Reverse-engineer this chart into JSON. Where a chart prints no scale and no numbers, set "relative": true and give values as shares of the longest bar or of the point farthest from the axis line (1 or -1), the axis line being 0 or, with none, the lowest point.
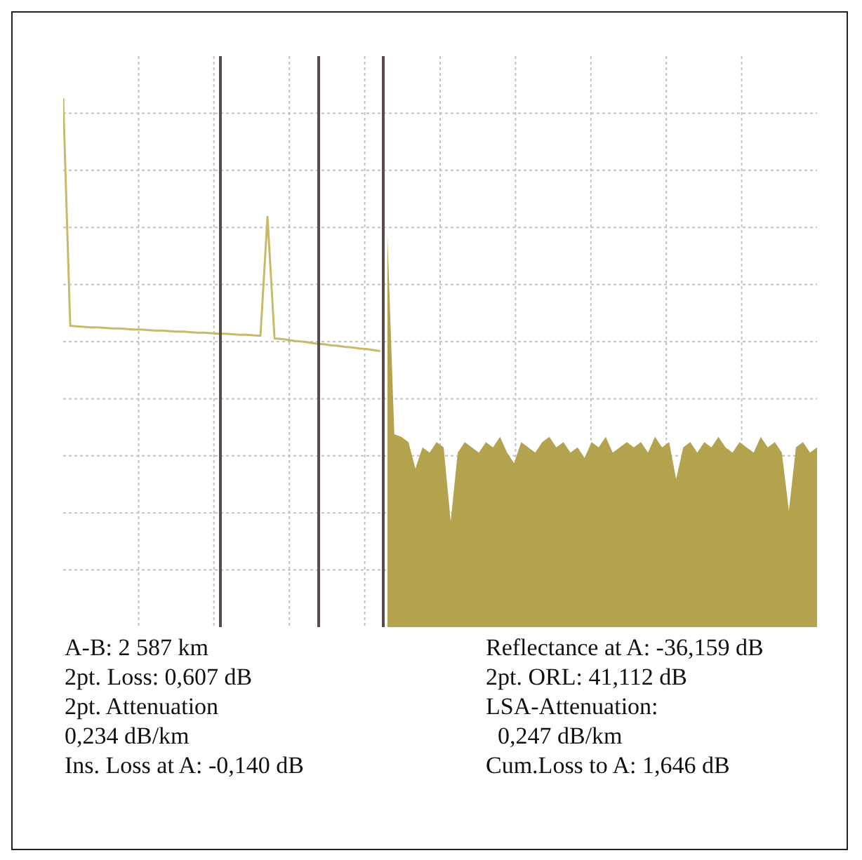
{
  "chart_data": {
    "type": "line",
    "relative": true,
    "grid": true,
    "legend": false,
    "categories": [
      null,
      null,
      null,
      null,
      null,
      null,
      null,
      null,
      null,
      null,
      null,
      null,
      null,
      null,
      null,
      null,
      null,
      null,
      null,
      null,
      null,
      null,
      null,
      null,
      null,
      null,
      null,
      null,
      null,
      null,
      null,
      null,
      null,
      null,
      null,
      null,
      null,
      null,
      null,
      null,
      null,
      null,
      null,
      null,
      null,
      null,
      null,
      null,
      null,
      null,
      null,
      null,
      null,
      null,
      null,
      null,
      null,
      null,
      null,
      null,
      null,
      null,
      null,
      null,
      null,
      null,
      null,
      null,
      null,
      null,
      null,
      null,
      null,
      null,
      null,
      null,
      null,
      null,
      null,
      null,
      null,
      null,
      null,
      null,
      null,
      null,
      null,
      null,
      null,
      null,
      null,
      null,
      null,
      null,
      null,
      null,
      null,
      null,
      null,
      null,
      null,
      null,
      null,
      null,
      null,
      null,
      null,
      null
    ],
    "series": [
      {
        "type": "line",
        "color": "#c9b96a",
        "values": [
          1.0,
          0.57,
          0.569,
          0.568,
          0.567,
          0.567,
          0.566,
          0.565,
          0.565,
          0.564,
          0.563,
          0.563,
          0.562,
          0.561,
          0.561,
          0.56,
          0.559,
          0.559,
          0.558,
          0.557,
          0.557,
          0.556,
          0.555,
          0.555,
          0.554,
          0.553,
          0.553,
          0.552,
          0.551,
          0.776,
          0.546,
          0.545,
          0.543,
          0.541,
          0.54,
          0.538,
          0.536,
          0.535,
          0.533,
          0.532,
          0.53,
          0.529,
          0.527,
          0.526,
          0.524,
          0.522,
          null,
          null,
          null,
          null,
          null,
          null,
          null,
          null,
          null,
          null,
          null,
          null,
          null,
          null,
          null,
          null,
          null,
          null,
          null,
          null,
          null,
          null,
          null,
          null,
          null,
          null,
          null,
          null,
          null,
          null,
          null,
          null,
          null,
          null,
          null,
          null,
          null,
          null,
          null,
          null,
          null,
          null,
          null,
          null,
          null,
          null,
          null,
          null,
          null,
          null,
          null,
          null,
          null,
          null,
          null,
          null,
          null,
          null,
          null,
          null,
          null,
          null
        ]
      },
      {
        "type": "area",
        "color": "#b3a24e",
        "values": [
          null,
          null,
          null,
          null,
          null,
          null,
          null,
          null,
          null,
          null,
          null,
          null,
          null,
          null,
          null,
          null,
          null,
          null,
          null,
          null,
          null,
          null,
          null,
          null,
          null,
          null,
          null,
          null,
          null,
          null,
          null,
          null,
          null,
          null,
          null,
          null,
          null,
          null,
          null,
          null,
          null,
          null,
          null,
          null,
          null,
          null,
          0.749,
          0.365,
          0.36,
          0.35,
          0.3,
          0.34,
          0.33,
          0.35,
          0.34,
          0.2,
          0.33,
          0.35,
          0.34,
          0.33,
          0.35,
          0.34,
          0.36,
          0.33,
          0.31,
          0.35,
          0.34,
          0.33,
          0.35,
          0.36,
          0.34,
          0.35,
          0.33,
          0.34,
          0.32,
          0.35,
          0.34,
          0.36,
          0.33,
          0.34,
          0.35,
          0.34,
          0.35,
          0.33,
          0.36,
          0.34,
          0.35,
          0.28,
          0.34,
          0.35,
          0.33,
          0.35,
          0.34,
          0.36,
          0.34,
          0.33,
          0.35,
          0.34,
          0.33,
          0.36,
          0.34,
          0.35,
          0.33,
          0.22,
          0.34,
          0.35,
          0.33,
          0.34
        ]
      }
    ],
    "annotations": [
      "A-B: 2 587 km",
      "Reflectance at A: -36,159 dB",
      "2pt. Loss: 0,607 dB",
      "2pt. ORL: 41,112 dB",
      "2pt. Attenuation\n0,234 dB/km",
      "LSA-Attenuation:\n  0,247 dB/km",
      "Ins. Loss at A: -0,140 dB",
      "Cum.Loss to A: 1,646 dB"
    ]
  }
}
